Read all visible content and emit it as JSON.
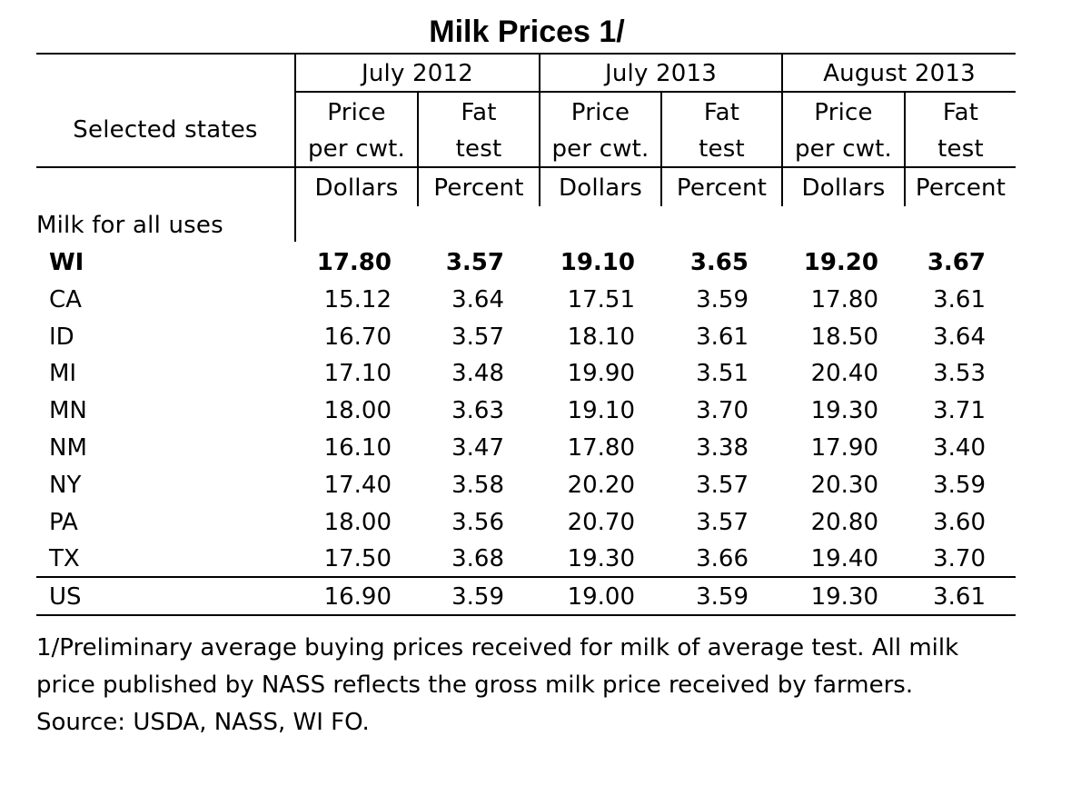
{
  "title": "Milk Prices 1/",
  "header": {
    "row_label": "Selected states",
    "periods": [
      "July 2012",
      "July 2013",
      "August 2013"
    ],
    "sub": {
      "price_line1": "Price",
      "price_line2": "per cwt.",
      "fat_line1": "Fat",
      "fat_line2": "test"
    },
    "units": {
      "price": "Dollars",
      "fat": "Percent"
    }
  },
  "section_label": "Milk for all uses",
  "rows": [
    {
      "state": "WI",
      "v": [
        "17.80",
        "3.57",
        "19.10",
        "3.65",
        "19.20",
        "3.67"
      ],
      "bold": true
    },
    {
      "state": "CA",
      "v": [
        "15.12",
        "3.64",
        "17.51",
        "3.59",
        "17.80",
        "3.61"
      ]
    },
    {
      "state": "ID",
      "v": [
        "16.70",
        "3.57",
        "18.10",
        "3.61",
        "18.50",
        "3.64"
      ]
    },
    {
      "state": "MI",
      "v": [
        "17.10",
        "3.48",
        "19.90",
        "3.51",
        "20.40",
        "3.53"
      ]
    },
    {
      "state": "MN",
      "v": [
        "18.00",
        "3.63",
        "19.10",
        "3.70",
        "19.30",
        "3.71"
      ]
    },
    {
      "state": "NM",
      "v": [
        "16.10",
        "3.47",
        "17.80",
        "3.38",
        "17.90",
        "3.40"
      ]
    },
    {
      "state": "NY",
      "v": [
        "17.40",
        "3.58",
        "20.20",
        "3.57",
        "20.30",
        "3.59"
      ]
    },
    {
      "state": "PA",
      "v": [
        "18.00",
        "3.56",
        "20.70",
        "3.57",
        "20.80",
        "3.60"
      ]
    },
    {
      "state": "TX",
      "v": [
        "17.50",
        "3.68",
        "19.30",
        "3.66",
        "19.40",
        "3.70"
      ]
    }
  ],
  "total_row": {
    "state": "US",
    "v": [
      "16.90",
      "3.59",
      "19.00",
      "3.59",
      "19.30",
      "3.61"
    ]
  },
  "footnote": [
    "1/Preliminary average buying prices received for milk of average test. All milk",
    "price published by NASS reflects the gross milk price received by farmers.",
    "Source: USDA, NASS, WI FO."
  ]
}
